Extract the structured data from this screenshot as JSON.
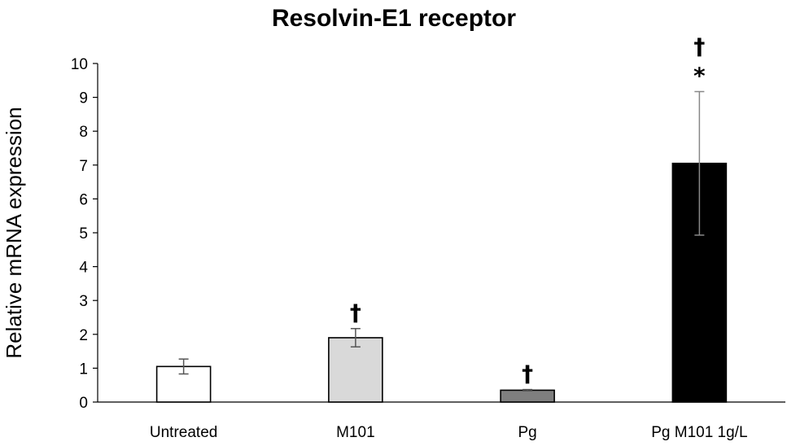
{
  "chart_data": {
    "type": "bar",
    "title": "Resolvin-E1 receptor",
    "xlabel": "",
    "ylabel": "Relative mRNA expression",
    "ylim": [
      0,
      10
    ],
    "yticks": [
      0,
      1,
      2,
      3,
      4,
      5,
      6,
      7,
      8,
      9,
      10
    ],
    "categories": [
      "Untreated",
      "M101",
      "Pg",
      "Pg M101 1g/L"
    ],
    "values": [
      1.05,
      1.9,
      0.35,
      7.05
    ],
    "errors": [
      0.22,
      0.27,
      0.02,
      2.12
    ],
    "bar_colors": [
      "#ffffff",
      "#d9d9d9",
      "#7f7f7f",
      "#000000"
    ],
    "annotations": [
      {
        "category": "Untreated",
        "labels": []
      },
      {
        "category": "M101",
        "labels": [
          "†"
        ]
      },
      {
        "category": "Pg",
        "labels": [
          "†"
        ]
      },
      {
        "category": "Pg M101 1g/L",
        "labels": [
          "*",
          "†"
        ]
      }
    ],
    "grid": false,
    "legend": "none"
  }
}
